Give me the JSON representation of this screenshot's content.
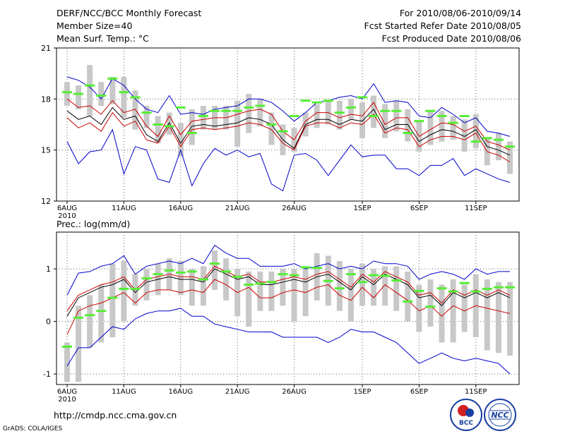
{
  "header": {
    "title": "DERF/NCC/BCC Monthly Forecast",
    "member_size": "Member Size=40",
    "period": "For 2010/08/06-2010/09/14",
    "fcst_started": "Fcst Started Refer Date 2010/08/05",
    "fcst_produced": "Fcst Produced Date 2010/08/06"
  },
  "footer": {
    "url": "http://cmdp.ncc.cma.gov.cn",
    "credit": "GrADS: COLA/IGES",
    "logo_bcc_text": "BCC",
    "logo_ncc_text": "NCC"
  },
  "colors": {
    "max_min": "#0000cc",
    "spread": "#cc0000",
    "mean": "#000000",
    "box": "#c8c8c8",
    "marker": "#55ee33",
    "grid": "#666666"
  },
  "chart_data": [
    {
      "type": "line",
      "title": "Mean Surf. Temp.: °C",
      "x_tick_labels": [
        "6AUG\n2010",
        "11AUG",
        "16AUG",
        "21AUG",
        "26AUG",
        "1SEP",
        "6SEP",
        "11SEP"
      ],
      "x_tick_days": [
        1,
        6,
        11,
        16,
        21,
        27,
        32,
        37
      ],
      "y_ticks": [
        12,
        15,
        18,
        21
      ],
      "ylim": [
        12,
        21
      ],
      "days": 40,
      "series": [
        {
          "name": "max",
          "color": "#0000cc",
          "values": [
            19.3,
            19.1,
            18.7,
            18.0,
            19.2,
            18.8,
            18.0,
            17.4,
            17.2,
            18.2,
            17.1,
            17.2,
            17.1,
            17.4,
            17.5,
            17.6,
            18.0,
            18.0,
            17.8,
            17.3,
            16.7,
            17.2,
            17.8,
            17.9,
            18.1,
            18.2,
            18.0,
            18.9,
            17.8,
            17.9,
            17.8,
            17.0,
            16.9,
            17.5,
            17.1,
            16.6,
            16.9,
            16.1,
            16.0,
            15.8
          ]
        },
        {
          "name": "upper",
          "color": "#cc0000",
          "values": [
            18.0,
            17.5,
            17.6,
            17.1,
            17.9,
            17.2,
            17.4,
            16.4,
            15.8,
            17.0,
            15.9,
            16.7,
            16.8,
            16.9,
            16.9,
            17.1,
            17.3,
            17.4,
            17.1,
            16.1,
            15.6,
            16.7,
            17.2,
            17.2,
            16.9,
            17.1,
            17.0,
            17.8,
            16.5,
            16.9,
            16.9,
            15.8,
            16.2,
            16.6,
            16.5,
            16.1,
            16.4,
            15.5,
            15.3,
            15.0
          ]
        },
        {
          "name": "mean",
          "color": "#000000",
          "values": [
            17.3,
            16.8,
            17.0,
            16.5,
            17.5,
            16.8,
            17.0,
            15.9,
            15.5,
            16.6,
            15.4,
            16.4,
            16.5,
            16.4,
            16.5,
            16.6,
            16.9,
            16.8,
            16.5,
            15.6,
            15.1,
            16.5,
            16.8,
            16.8,
            16.5,
            16.8,
            16.7,
            17.4,
            16.2,
            16.5,
            16.5,
            15.5,
            15.9,
            16.2,
            16.1,
            15.8,
            16.2,
            15.2,
            15.0,
            14.7
          ]
        },
        {
          "name": "lower",
          "color": "#cc0000",
          "values": [
            16.9,
            16.3,
            16.6,
            16.1,
            17.2,
            16.4,
            16.7,
            15.6,
            15.4,
            16.4,
            15.2,
            16.2,
            16.3,
            16.2,
            16.3,
            16.4,
            16.6,
            16.5,
            16.2,
            15.4,
            15.0,
            16.4,
            16.6,
            16.6,
            16.3,
            16.6,
            16.5,
            17.1,
            16.0,
            16.3,
            16.2,
            15.2,
            15.6,
            15.8,
            15.8,
            15.6,
            16.0,
            14.9,
            14.7,
            14.3
          ]
        },
        {
          "name": "min",
          "color": "#0000cc",
          "values": [
            15.5,
            14.2,
            14.9,
            15.0,
            16.2,
            13.6,
            15.2,
            15.0,
            13.3,
            13.1,
            15.0,
            12.9,
            14.2,
            15.1,
            14.7,
            15.0,
            14.6,
            14.8,
            13.0,
            12.6,
            14.7,
            14.8,
            14.4,
            13.5,
            14.4,
            15.3,
            14.6,
            14.7,
            14.7,
            13.9,
            13.9,
            13.5,
            14.1,
            14.1,
            14.5,
            13.5,
            13.9,
            13.6,
            13.3,
            13.1
          ]
        }
      ],
      "boxes": [
        [
          17.6,
          19.0
        ],
        [
          17.4,
          18.8
        ],
        [
          17.0,
          20.0
        ],
        [
          17.6,
          19.0
        ],
        [
          17.7,
          19.3
        ],
        [
          16.9,
          19.3
        ],
        [
          16.2,
          18.5
        ],
        [
          16.3,
          17.6
        ],
        [
          15.4,
          17.0
        ],
        [
          15.9,
          17.2
        ],
        [
          14.6,
          16.6
        ],
        [
          15.3,
          17.4
        ],
        [
          16.2,
          17.6
        ],
        [
          16.2,
          17.6
        ],
        [
          16.2,
          17.6
        ],
        [
          15.2,
          17.9
        ],
        [
          16.0,
          18.3
        ],
        [
          16.4,
          18.0
        ],
        [
          15.3,
          17.2
        ],
        [
          14.7,
          16.5
        ],
        [
          14.9,
          16.3
        ],
        [
          15.8,
          17.2
        ],
        [
          16.3,
          17.7
        ],
        [
          16.5,
          17.9
        ],
        [
          16.2,
          17.9
        ],
        [
          16.8,
          18.0
        ],
        [
          15.7,
          17.8
        ],
        [
          16.3,
          18.2
        ],
        [
          15.7,
          17.7
        ],
        [
          16.1,
          17.9
        ],
        [
          15.5,
          17.4
        ],
        [
          14.9,
          16.7
        ],
        [
          15.3,
          17.3
        ],
        [
          15.5,
          17.3
        ],
        [
          15.6,
          17.0
        ],
        [
          14.9,
          16.8
        ],
        [
          15.1,
          17.1
        ],
        [
          14.1,
          15.7
        ],
        [
          14.4,
          16.0
        ],
        [
          13.6,
          15.5
        ]
      ],
      "markers": [
        18.4,
        18.3,
        18.8,
        18.2,
        19.2,
        18.4,
        18.1,
        17.2,
        16.5,
        16.4,
        17.5,
        16.0,
        17.0,
        17.3,
        17.3,
        17.3,
        17.5,
        17.6,
        16.5,
        16.1,
        17.0,
        17.9,
        17.8,
        17.9,
        17.2,
        17.5,
        18.1,
        17.0,
        17.3,
        17.3,
        16.0,
        16.7,
        17.3,
        17.0,
        16.6,
        17.0,
        15.5,
        15.7,
        15.6,
        15.2
      ]
    },
    {
      "type": "line",
      "title": "Prec.: log(mm/d)",
      "x_tick_labels": [
        "6AUG\n2010",
        "11AUG",
        "16AUG",
        "21AUG",
        "26AUG",
        "1SEP",
        "6SEP",
        "11SEP"
      ],
      "x_tick_days": [
        1,
        6,
        11,
        16,
        21,
        27,
        32,
        37
      ],
      "y_ticks": [
        -1,
        0,
        1
      ],
      "ylim": [
        -1.2,
        1.7
      ],
      "days": 40,
      "series": [
        {
          "name": "max",
          "color": "#0000cc",
          "values": [
            0.5,
            0.92,
            0.95,
            1.05,
            1.1,
            1.25,
            0.9,
            1.05,
            1.1,
            1.15,
            1.1,
            1.2,
            1.1,
            1.45,
            1.3,
            1.2,
            1.2,
            1.05,
            1.05,
            1.05,
            1.1,
            1.0,
            1.05,
            1.1,
            1.0,
            1.05,
            1.0,
            1.15,
            1.1,
            1.1,
            1.05,
            0.8,
            0.9,
            0.95,
            0.9,
            0.8,
            1.0,
            0.9,
            0.95,
            0.95
          ]
        },
        {
          "name": "upper",
          "color": "#cc0000",
          "values": [
            0.2,
            0.5,
            0.6,
            0.7,
            0.75,
            0.85,
            0.6,
            0.8,
            0.85,
            0.9,
            0.85,
            0.85,
            0.8,
            1.05,
            0.95,
            0.85,
            0.9,
            0.75,
            0.75,
            0.8,
            0.85,
            0.8,
            0.9,
            0.95,
            0.8,
            0.65,
            0.9,
            0.75,
            0.95,
            0.85,
            0.75,
            0.5,
            0.55,
            0.35,
            0.6,
            0.5,
            0.6,
            0.5,
            0.6,
            0.5
          ]
        },
        {
          "name": "mean",
          "color": "#000000",
          "values": [
            0.1,
            0.45,
            0.55,
            0.65,
            0.7,
            0.8,
            0.55,
            0.75,
            0.8,
            0.85,
            0.8,
            0.8,
            0.75,
            1.0,
            0.9,
            0.8,
            0.85,
            0.7,
            0.7,
            0.75,
            0.8,
            0.75,
            0.85,
            0.9,
            0.75,
            0.6,
            0.85,
            0.7,
            0.9,
            0.8,
            0.7,
            0.45,
            0.5,
            0.3,
            0.55,
            0.45,
            0.55,
            0.45,
            0.55,
            0.45
          ]
        },
        {
          "name": "lower",
          "color": "#cc0000",
          "values": [
            -0.25,
            0.2,
            0.3,
            0.35,
            0.45,
            0.55,
            0.35,
            0.55,
            0.6,
            0.6,
            0.55,
            0.6,
            0.55,
            0.8,
            0.7,
            0.55,
            0.65,
            0.45,
            0.45,
            0.55,
            0.6,
            0.55,
            0.65,
            0.7,
            0.5,
            0.4,
            0.65,
            0.45,
            0.7,
            0.55,
            0.4,
            0.2,
            0.3,
            0.1,
            0.3,
            0.2,
            0.3,
            0.25,
            0.2,
            0.15
          ]
        },
        {
          "name": "min",
          "color": "#0000cc",
          "values": [
            -0.85,
            -0.5,
            -0.5,
            -0.3,
            -0.1,
            -0.15,
            0.05,
            0.15,
            0.2,
            0.2,
            0.25,
            0.1,
            0.1,
            -0.05,
            -0.1,
            -0.15,
            -0.2,
            -0.2,
            -0.2,
            -0.3,
            -0.3,
            -0.3,
            -0.3,
            -0.4,
            -0.3,
            -0.15,
            -0.2,
            -0.2,
            -0.3,
            -0.4,
            -0.6,
            -0.8,
            -0.7,
            -0.6,
            -0.7,
            -0.75,
            -0.7,
            -0.75,
            -0.8,
            -1.0
          ]
        }
      ],
      "boxes": [
        [
          -1.15,
          -0.4
        ],
        [
          -1.15,
          0.3
        ],
        [
          -0.5,
          0.5
        ],
        [
          -0.4,
          0.7
        ],
        [
          -0.3,
          1.1
        ],
        [
          0.0,
          1.15
        ],
        [
          0.3,
          0.9
        ],
        [
          0.4,
          1.0
        ],
        [
          0.5,
          1.1
        ],
        [
          0.6,
          1.2
        ],
        [
          0.5,
          1.15
        ],
        [
          0.3,
          1.0
        ],
        [
          0.3,
          1.05
        ],
        [
          0.6,
          1.35
        ],
        [
          0.4,
          1.2
        ],
        [
          0.1,
          1.0
        ],
        [
          -0.1,
          0.95
        ],
        [
          0.2,
          0.95
        ],
        [
          0.2,
          0.95
        ],
        [
          0.3,
          1.0
        ],
        [
          0.0,
          1.0
        ],
        [
          0.1,
          1.05
        ],
        [
          0.4,
          1.3
        ],
        [
          0.3,
          1.25
        ],
        [
          0.2,
          1.15
        ],
        [
          0.0,
          1.0
        ],
        [
          0.3,
          1.1
        ],
        [
          0.3,
          1.0
        ],
        [
          0.3,
          1.05
        ],
        [
          0.2,
          1.05
        ],
        [
          0.0,
          0.95
        ],
        [
          -0.2,
          0.7
        ],
        [
          -0.1,
          0.8
        ],
        [
          -0.4,
          0.7
        ],
        [
          -0.4,
          0.8
        ],
        [
          -0.2,
          0.7
        ],
        [
          -0.3,
          0.9
        ],
        [
          -0.55,
          0.8
        ],
        [
          -0.6,
          0.75
        ],
        [
          -0.65,
          0.75
        ]
      ],
      "markers": [
        -0.48,
        0.07,
        0.12,
        0.2,
        0.45,
        0.62,
        0.62,
        0.82,
        0.9,
        0.97,
        0.93,
        0.95,
        0.8,
        1.1,
        0.95,
        0.85,
        0.7,
        0.72,
        0.75,
        0.9,
        0.88,
        1.03,
        1.02,
        0.77,
        0.63,
        0.9,
        0.75,
        0.88,
        0.87,
        0.78,
        0.38,
        0.58,
        0.28,
        0.63,
        0.57,
        0.73,
        0.57,
        0.62,
        0.65,
        0.65
      ]
    }
  ]
}
